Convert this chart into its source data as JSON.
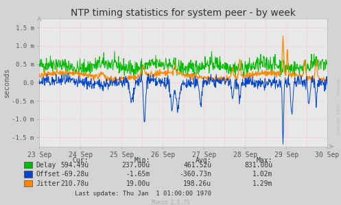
{
  "title": "NTP timing statistics for system peer - by week",
  "ylabel": "seconds",
  "background_color": "#d4d4d4",
  "plot_bg_color": "#e8e8e8",
  "grid_color_h": "#ffaaaa",
  "grid_color_v": "#ffaaaa",
  "x_labels": [
    "23 Sep",
    "24 Sep",
    "25 Sep",
    "26 Sep",
    "27 Sep",
    "28 Sep",
    "29 Sep",
    "30 Sep"
  ],
  "x_tick_pos": [
    0,
    1,
    2,
    3,
    4,
    5,
    6,
    7
  ],
  "y_ticks": [
    -1.5,
    -1.0,
    -0.5,
    0.0,
    0.5,
    1.0,
    1.5
  ],
  "y_tick_labels": [
    "-1.5 m",
    "-1.0 m",
    "-0.5 m",
    "0.0",
    "0.5 m",
    "1.0 m",
    "1.5 m"
  ],
  "ylim": [
    -1.75,
    1.75
  ],
  "delay_color": "#00bb00",
  "offset_color": "#0044cc",
  "jitter_color": "#ff8800",
  "legend_items": [
    "Delay",
    "Offset",
    "Jitter"
  ],
  "legend_colors": [
    "#00bb00",
    "#0044cc",
    "#ff8800"
  ],
  "table_headers": [
    "Cur:",
    "Min:",
    "Avg:",
    "Max:"
  ],
  "table_data": [
    [
      "594.49u",
      "237.00u",
      "461.52u",
      "831.00u"
    ],
    [
      "-69.28u",
      "-1.65m",
      "-360.73n",
      "1.02m"
    ],
    [
      "210.78u",
      "19.00u",
      "198.26u",
      "1.29m"
    ]
  ],
  "last_update": "Last update: Thu Jan  1 01:00:00 1970",
  "munin_version": "Munin 2.0.75",
  "rrdtool_text": "RRDTOOL / TOBI OETIKER",
  "title_fontsize": 10,
  "seed": 42
}
